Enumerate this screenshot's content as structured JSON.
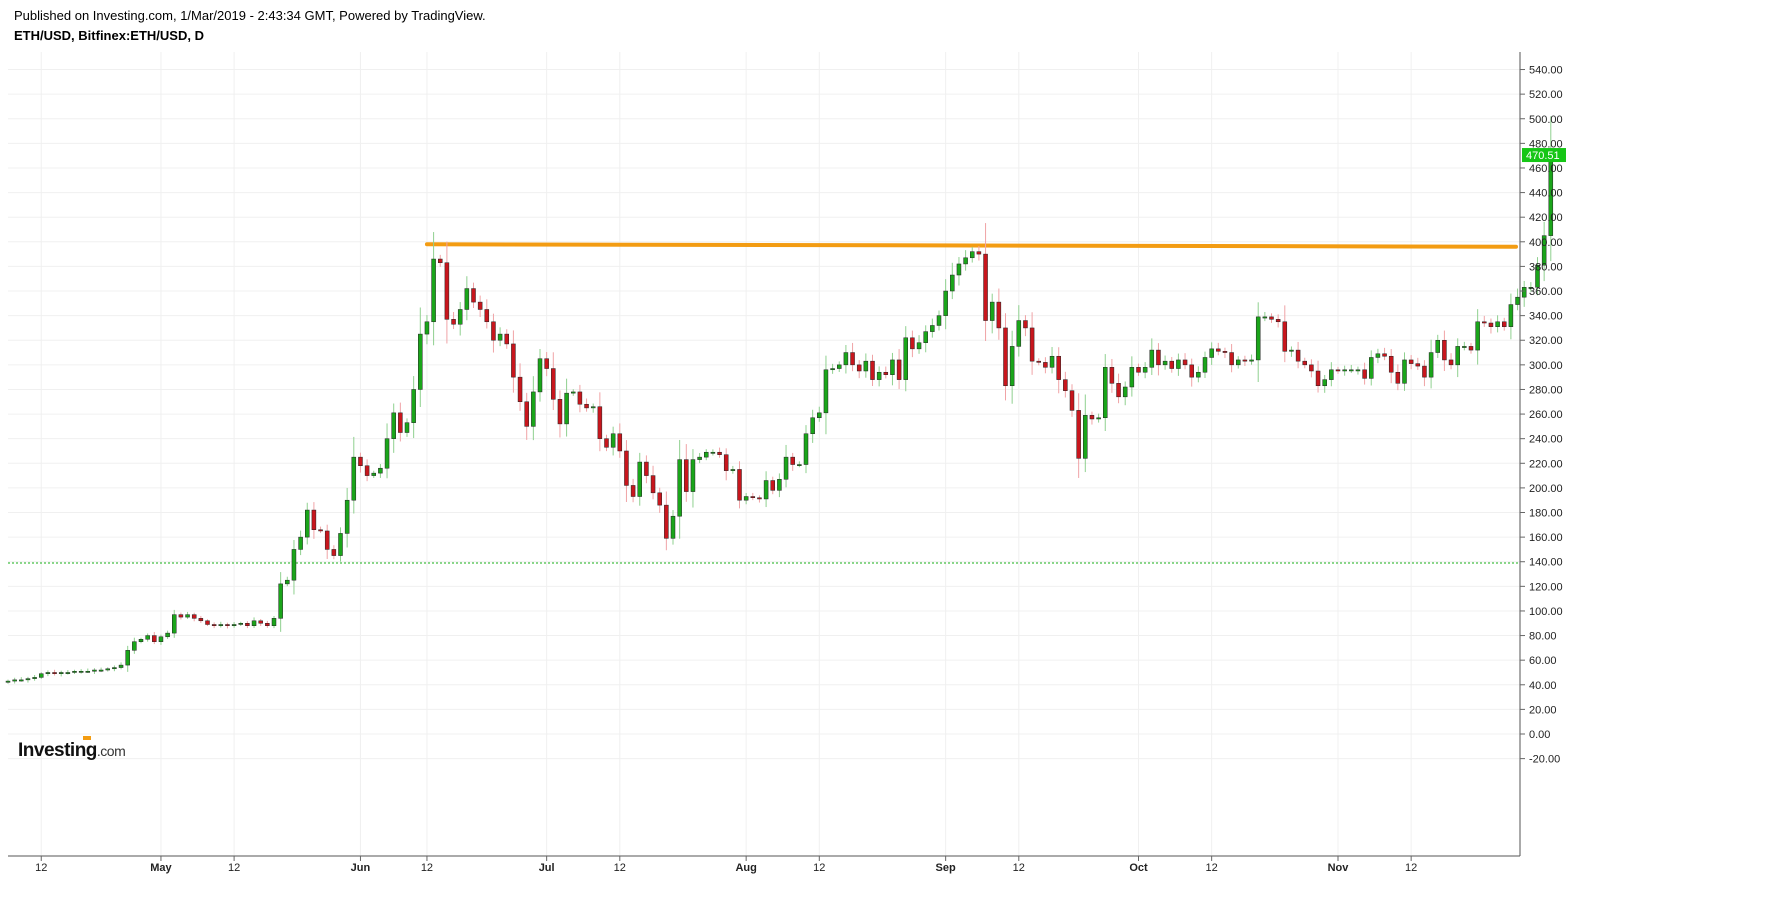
{
  "header": {
    "published": "Published on Investing.com, 1/Mar/2019 - 2:43:34 GMT, Powered by TradingView.",
    "symbol": "ETH/USD, Bitfinex:ETH/USD, D"
  },
  "logo": {
    "brand": "Investing",
    "suffix": ".com"
  },
  "colors": {
    "up": "#1aa51a",
    "down": "#c8161d",
    "resistance": "#f39c12",
    "support": "#19b219",
    "last_price_bg": "#16c616"
  },
  "chart_data": {
    "type": "candlestick",
    "ylim": [
      -30,
      550
    ],
    "y_ticks": [
      "540.00",
      "520.00",
      "500.00",
      "480.00",
      "460.00",
      "440.00",
      "420.00",
      "400.00",
      "380.00",
      "360.00",
      "340.00",
      "320.00",
      "300.00",
      "280.00",
      "260.00",
      "240.00",
      "220.00",
      "200.00",
      "180.00",
      "160.00",
      "140.00",
      "120.00",
      "100.00",
      "80.00",
      "60.00",
      "40.00",
      "20.00",
      "0.00",
      "-20.00"
    ],
    "x_ticks": [
      {
        "label": "12",
        "index": 5,
        "bold": false
      },
      {
        "label": "May",
        "index": 23,
        "bold": true
      },
      {
        "label": "12",
        "index": 34,
        "bold": false
      },
      {
        "label": "Jun",
        "index": 53,
        "bold": true
      },
      {
        "label": "12",
        "index": 63,
        "bold": false
      },
      {
        "label": "Jul",
        "index": 81,
        "bold": true
      },
      {
        "label": "12",
        "index": 92,
        "bold": false
      },
      {
        "label": "Aug",
        "index": 111,
        "bold": true
      },
      {
        "label": "12",
        "index": 122,
        "bold": false
      },
      {
        "label": "Sep",
        "index": 141,
        "bold": true
      },
      {
        "label": "12",
        "index": 152,
        "bold": false
      },
      {
        "label": "Oct",
        "index": 170,
        "bold": true
      },
      {
        "label": "12",
        "index": 181,
        "bold": false
      },
      {
        "label": "Nov",
        "index": 200,
        "bold": true
      },
      {
        "label": "12",
        "index": 211,
        "bold": false
      }
    ],
    "last_price": 470.51,
    "last_price_label": "470.51",
    "resistance_line": {
      "from_index": 63,
      "to_index": 221,
      "start": 398,
      "end": 396
    },
    "support_level": 139,
    "closes": [
      43,
      44,
      44,
      45,
      46,
      49,
      50,
      49,
      50,
      50,
      51,
      51,
      51,
      52,
      52,
      53,
      54,
      56,
      68,
      75,
      77,
      80,
      75,
      79,
      82,
      97,
      95,
      97,
      94,
      92,
      89,
      88,
      89,
      88,
      89,
      90,
      88,
      92,
      90,
      88,
      94,
      122,
      125,
      150,
      160,
      182,
      166,
      165,
      150,
      145,
      163,
      190,
      225,
      218,
      210,
      212,
      216,
      240,
      261,
      245,
      253,
      280,
      325,
      335,
      386,
      383,
      337,
      333,
      345,
      362,
      351,
      345,
      335,
      320,
      325,
      317,
      290,
      270,
      250,
      278,
      305,
      297,
      272,
      252,
      277,
      278,
      268,
      265,
      266,
      240,
      233,
      244,
      230,
      202,
      193,
      221,
      210,
      196,
      186,
      159,
      177,
      223,
      197,
      223,
      225,
      229,
      229,
      227,
      214,
      215,
      190,
      193,
      192,
      191,
      206,
      198,
      207,
      225,
      219,
      219,
      244,
      257,
      261,
      296,
      297,
      300,
      310,
      300,
      295,
      303,
      288,
      294,
      292,
      304,
      288,
      322,
      313,
      318,
      327,
      332,
      340,
      360,
      373,
      382,
      387,
      392,
      390,
      336,
      351,
      330,
      283,
      315,
      336,
      330,
      303,
      302,
      298,
      307,
      288,
      279,
      263,
      224,
      259,
      256,
      257,
      298,
      285,
      274,
      282,
      298,
      294,
      298,
      312,
      300,
      303,
      297,
      304,
      300,
      290,
      294,
      306,
      313,
      311,
      310,
      300,
      304,
      303,
      304,
      339,
      339,
      337,
      335,
      311,
      312,
      303,
      300,
      295,
      283,
      288,
      296,
      295,
      296,
      296,
      296,
      289,
      306,
      309,
      307,
      294,
      285,
      304,
      301,
      299,
      290,
      310,
      320,
      304,
      300,
      315,
      315,
      312,
      335,
      334,
      331,
      335,
      331,
      349,
      355,
      363,
      363,
      381,
      405,
      470.51
    ]
  }
}
